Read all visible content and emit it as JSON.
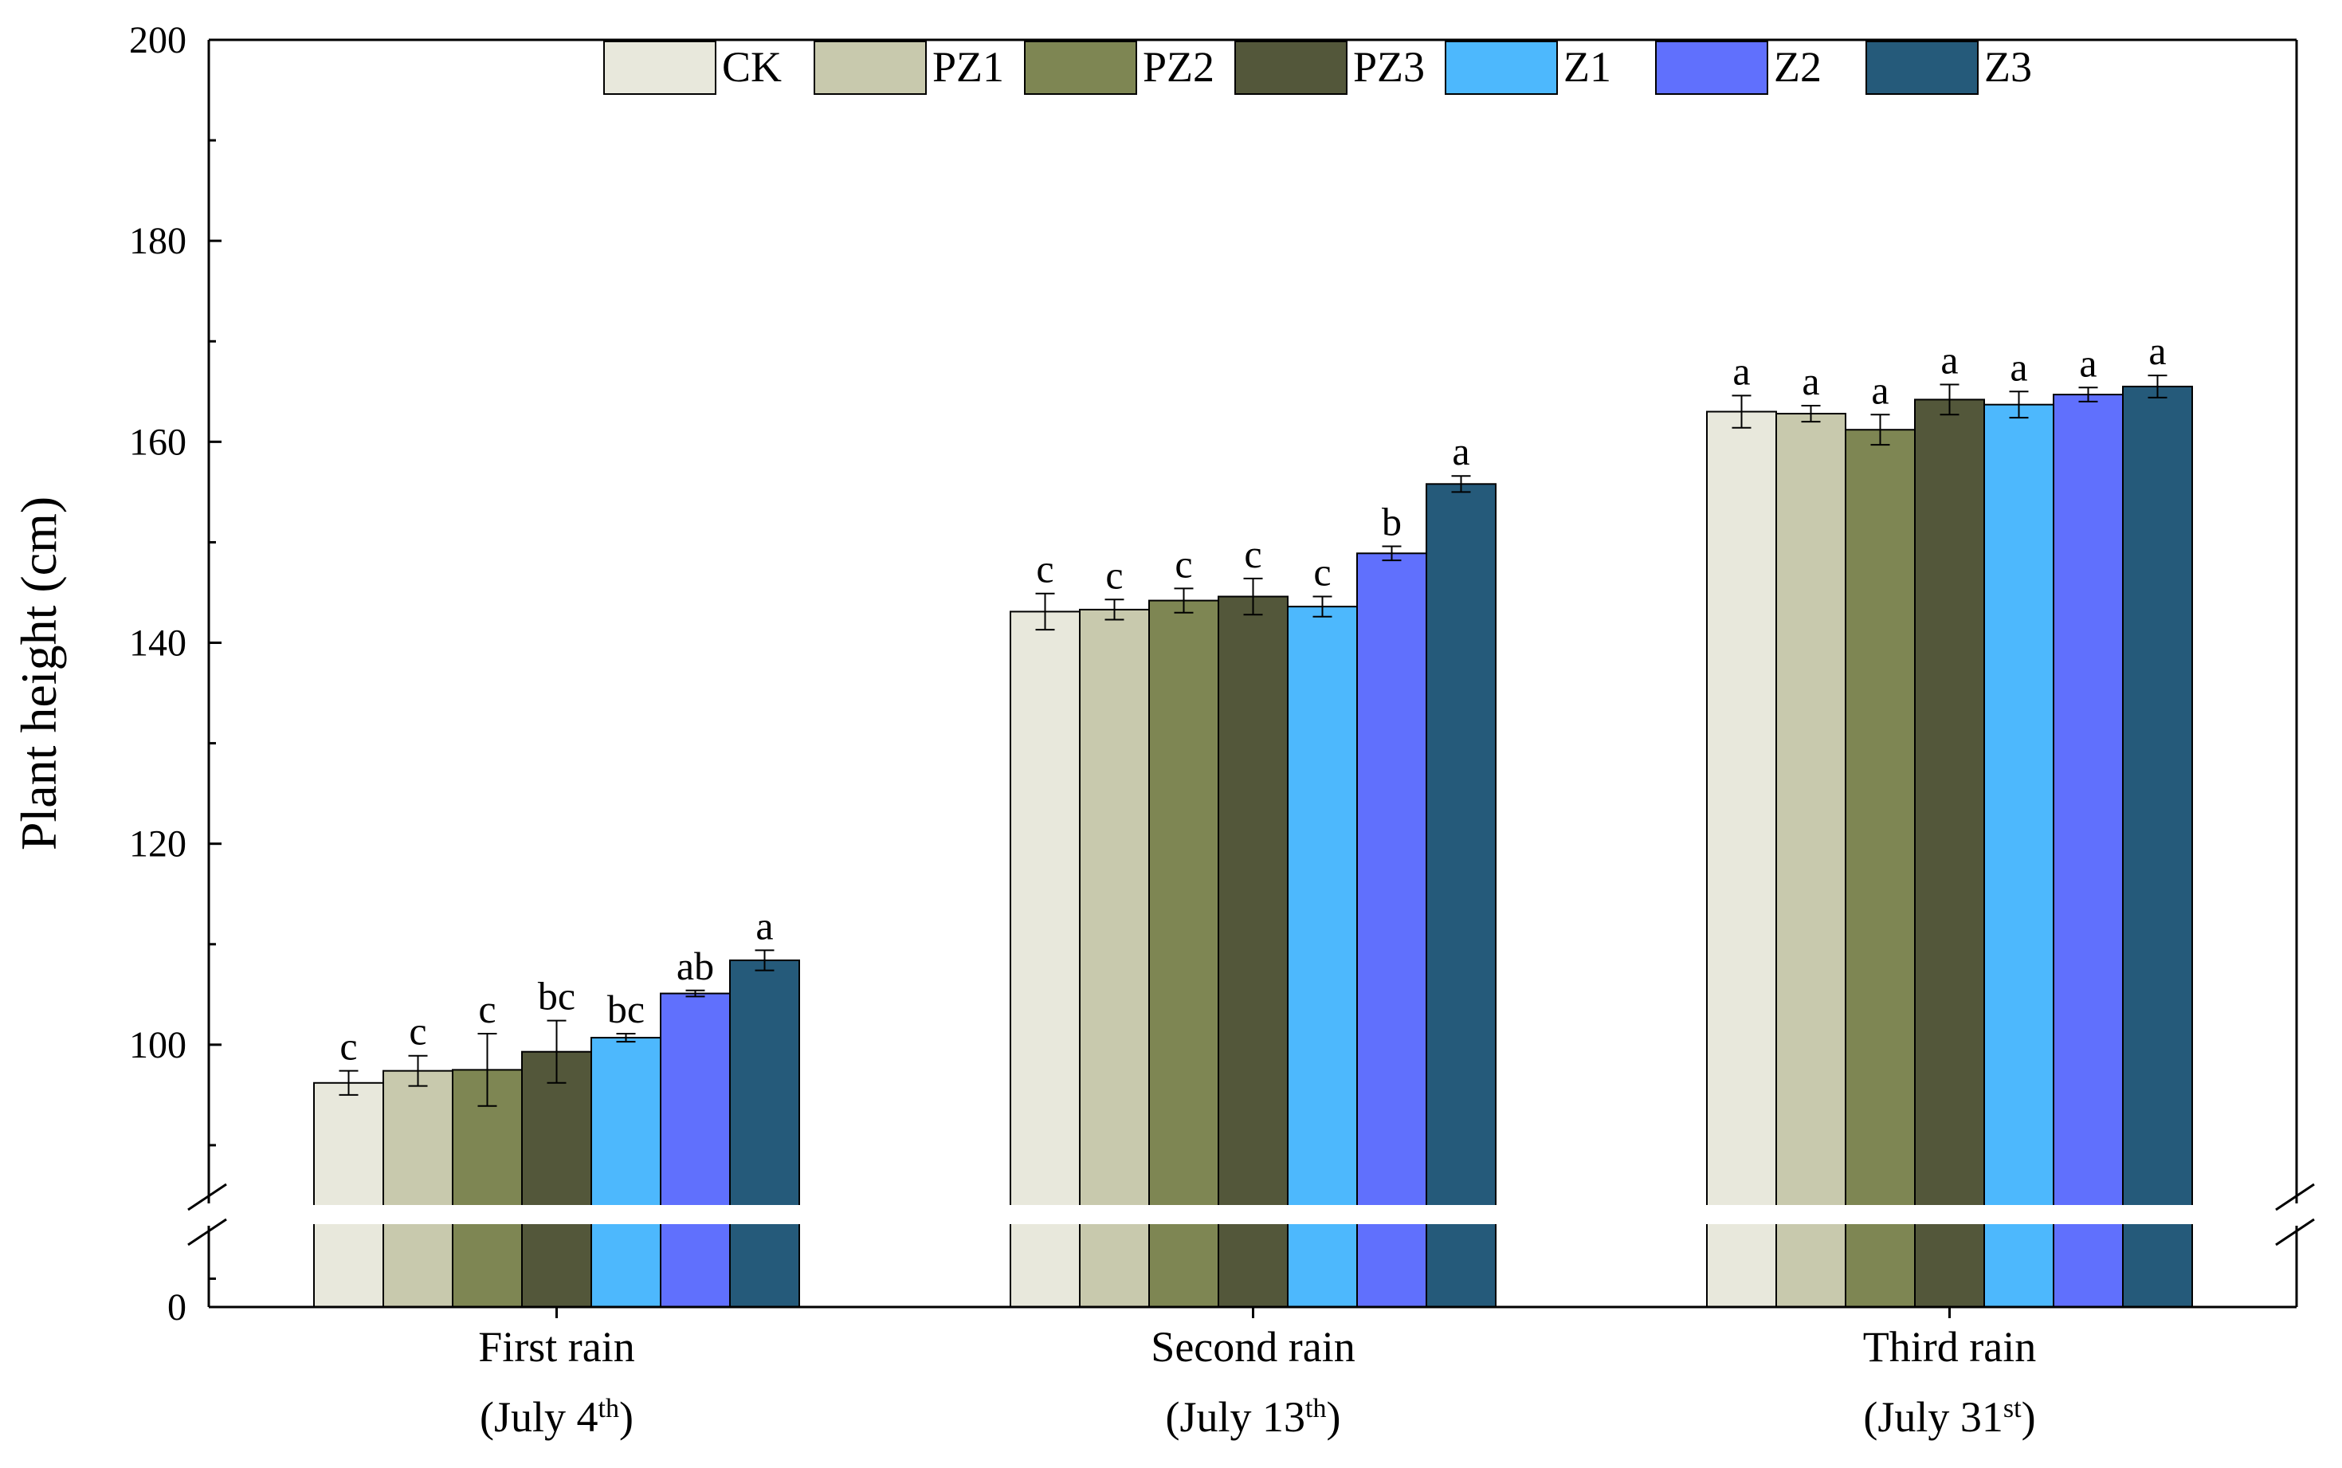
{
  "chart_data": {
    "type": "bar",
    "ylabel": "Plant height (cm)",
    "xlabel": "",
    "ylim": [
      0,
      200
    ],
    "axis_break": {
      "lower": [
        0,
        90
      ],
      "upper": [
        85,
        200
      ],
      "lower_ticks": [
        0
      ],
      "upper_ticks": [
        100,
        120,
        140,
        160,
        180,
        200
      ]
    },
    "legend_position": "top-center",
    "legend_items": [
      "CK",
      "PZ1",
      "PZ2",
      "PZ3",
      "Z1",
      "Z2",
      "Z3"
    ],
    "categories": [
      {
        "name": "First rain",
        "date": "(July 4",
        "sup": "th",
        "close": ")"
      },
      {
        "name": "Second rain",
        "date": "(July 13",
        "sup": "th",
        "close": ")"
      },
      {
        "name": "Third rain",
        "date": "(July 31",
        "sup": "st",
        "close": ")"
      }
    ],
    "series": [
      {
        "name": "CK",
        "color": "#e8e8dc",
        "values": [
          96.2,
          143.1,
          163.0
        ],
        "errors": [
          1.2,
          1.8,
          1.6
        ],
        "labels": [
          "c",
          "c",
          "a"
        ]
      },
      {
        "name": "PZ1",
        "color": "#c8c9ad",
        "values": [
          97.4,
          143.3,
          162.8
        ],
        "errors": [
          1.5,
          1.0,
          0.8
        ],
        "labels": [
          "c",
          "c",
          "a"
        ]
      },
      {
        "name": "PZ2",
        "color": "#7e8653",
        "values": [
          97.5,
          144.2,
          161.2
        ],
        "errors": [
          3.6,
          1.2,
          1.5
        ],
        "labels": [
          "c",
          "c",
          "a"
        ]
      },
      {
        "name": "PZ3",
        "color": "#53573a",
        "values": [
          99.3,
          144.6,
          164.2
        ],
        "errors": [
          3.1,
          1.8,
          1.5
        ],
        "labels": [
          "bc",
          "c",
          "a"
        ]
      },
      {
        "name": "Z1",
        "color": "#4db8fd",
        "values": [
          100.7,
          143.6,
          163.7
        ],
        "errors": [
          0.4,
          1.0,
          1.3
        ],
        "labels": [
          "bc",
          "c",
          "a"
        ]
      },
      {
        "name": "Z2",
        "color": "#6070fd",
        "values": [
          105.1,
          148.9,
          164.7
        ],
        "errors": [
          0.3,
          0.7,
          0.7
        ],
        "labels": [
          "ab",
          "b",
          "a"
        ]
      },
      {
        "name": "Z3",
        "color": "#255a7a",
        "values": [
          108.4,
          155.8,
          165.5
        ],
        "errors": [
          1.0,
          0.8,
          1.1
        ],
        "labels": [
          "a",
          "a",
          "a"
        ]
      }
    ]
  }
}
